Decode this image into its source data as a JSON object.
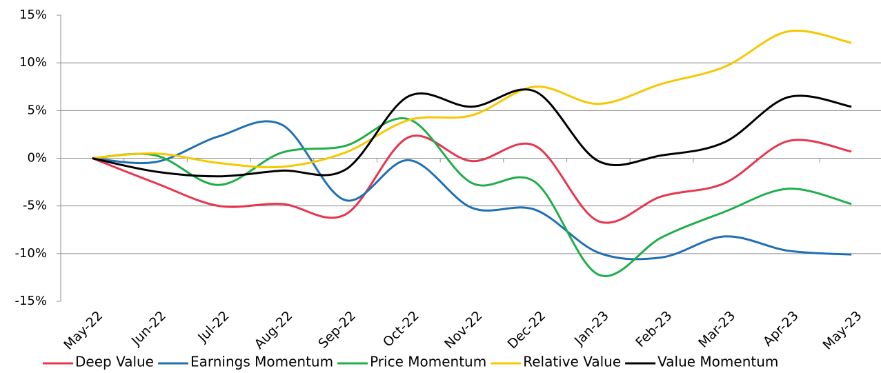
{
  "chart_data": {
    "type": "line",
    "categories": [
      "May-22",
      "Jun-22",
      "Jul-22",
      "Aug-22",
      "Sep-22",
      "Oct-22",
      "Nov-22",
      "Dec-22",
      "Jan-23",
      "Feb-23",
      "Mar-23",
      "Apr-23",
      "May-23"
    ],
    "series": [
      {
        "name": "Deep Value",
        "color": "#e8354e",
        "values": [
          0,
          -2.6,
          -5.0,
          -4.8,
          -5.9,
          2.2,
          -0.3,
          1.3,
          -6.6,
          -4.0,
          -2.6,
          1.8,
          0.7
        ]
      },
      {
        "name": "Earnings Momentum",
        "color": "#1f6fb4",
        "values": [
          0,
          -0.4,
          2.3,
          3.5,
          -4.4,
          -0.2,
          -5.2,
          -5.4,
          -9.9,
          -10.4,
          -8.2,
          -9.7,
          -10.1
        ]
      },
      {
        "name": "Price Momentum",
        "color": "#1fae4b",
        "values": [
          0,
          0.3,
          -2.8,
          0.6,
          1.3,
          4.1,
          -2.6,
          -2.5,
          -12.2,
          -8.3,
          -5.6,
          -3.2,
          -4.8
        ]
      },
      {
        "name": "Relative Value",
        "color": "#f5c800",
        "values": [
          0,
          0.5,
          -0.5,
          -0.9,
          0.6,
          4.0,
          4.5,
          7.5,
          5.7,
          7.8,
          9.6,
          13.3,
          12.1
        ]
      },
      {
        "name": "Value Momentum",
        "color": "#000000",
        "values": [
          0,
          -1.4,
          -1.9,
          -1.3,
          -1.2,
          6.5,
          5.4,
          7.0,
          -0.3,
          0.3,
          1.7,
          6.4,
          5.4
        ]
      }
    ],
    "ylim": [
      -15,
      15
    ],
    "yticks": [
      {
        "value": -15,
        "label": "-15%"
      },
      {
        "value": -10,
        "label": "-10%"
      },
      {
        "value": -5,
        "label": "-5%"
      },
      {
        "value": 0,
        "label": "0%"
      },
      {
        "value": 5,
        "label": "5%"
      },
      {
        "value": 10,
        "label": "10%"
      },
      {
        "value": 15,
        "label": "15%"
      }
    ],
    "grid": true,
    "legend": "bottom"
  }
}
